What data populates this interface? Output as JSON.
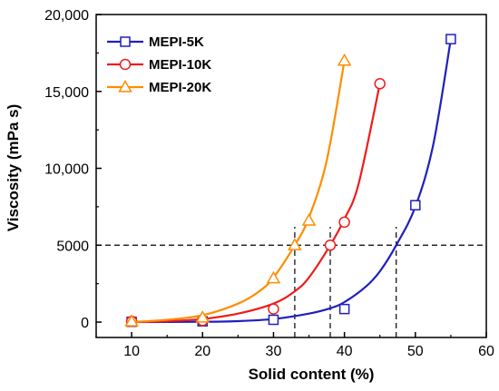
{
  "chart_data": {
    "type": "line",
    "xlabel": "Solid content (%)",
    "ylabel": "Viscosity (mPa s)",
    "xlim": [
      5,
      60
    ],
    "ylim": [
      -1000,
      20000
    ],
    "xticks": [
      10,
      20,
      30,
      40,
      50,
      60
    ],
    "xtick_labels": [
      "10",
      "20",
      "30",
      "40",
      "50",
      "60"
    ],
    "yticks": [
      0,
      5000,
      10000,
      15000,
      20000
    ],
    "ytick_labels": [
      "0",
      "5000",
      "10,000",
      "15,000",
      "20,000"
    ],
    "legend_position": "top-left",
    "grid": false,
    "series": [
      {
        "name": "MEPI-5K",
        "color": "#1f1fbf",
        "marker": "square",
        "points": [
          [
            10,
            20
          ],
          [
            20,
            50
          ],
          [
            30,
            150
          ],
          [
            40,
            850
          ],
          [
            50,
            7600
          ],
          [
            55,
            18400
          ]
        ],
        "curve": [
          [
            10,
            0
          ],
          [
            20,
            20
          ],
          [
            25,
            60
          ],
          [
            30,
            200
          ],
          [
            35,
            550
          ],
          [
            38,
            900
          ],
          [
            40,
            1300
          ],
          [
            43,
            2300
          ],
          [
            45,
            3300
          ],
          [
            47.3,
            5000
          ],
          [
            50,
            7500
          ],
          [
            52.5,
            11500
          ],
          [
            55,
            18400
          ]
        ]
      },
      {
        "name": "MEPI-10K",
        "color": "#ee1c1c",
        "marker": "circle",
        "points": [
          [
            10,
            50
          ],
          [
            20,
            100
          ],
          [
            30,
            850
          ],
          [
            38,
            5000
          ],
          [
            40,
            6500
          ],
          [
            45,
            15500
          ]
        ],
        "curve": [
          [
            10,
            0
          ],
          [
            15,
            60
          ],
          [
            20,
            200
          ],
          [
            25,
            550
          ],
          [
            30,
            1200
          ],
          [
            33,
            2000
          ],
          [
            35,
            2900
          ],
          [
            38,
            5000
          ],
          [
            40,
            6700
          ],
          [
            42,
            9000
          ],
          [
            45,
            15500
          ]
        ]
      },
      {
        "name": "MEPI-20K",
        "color": "#ff8c00",
        "marker": "triangle",
        "points": [
          [
            10,
            50
          ],
          [
            20,
            300
          ],
          [
            30,
            2850
          ],
          [
            33,
            5000
          ],
          [
            35,
            6600
          ],
          [
            40,
            17000
          ]
        ],
        "curve": [
          [
            10,
            0
          ],
          [
            15,
            150
          ],
          [
            20,
            450
          ],
          [
            25,
            1200
          ],
          [
            28,
            2000
          ],
          [
            30,
            2900
          ],
          [
            33,
            5000
          ],
          [
            35,
            6800
          ],
          [
            37.5,
            10500
          ],
          [
            40,
            17000
          ]
        ]
      }
    ],
    "reference_lines": {
      "horizontal": [
        5000
      ],
      "vertical": [
        {
          "x": 33,
          "y_top": 6200
        },
        {
          "x": 38,
          "y_top": 6200
        },
        {
          "x": 47.3,
          "y_top": 6200
        }
      ]
    }
  }
}
